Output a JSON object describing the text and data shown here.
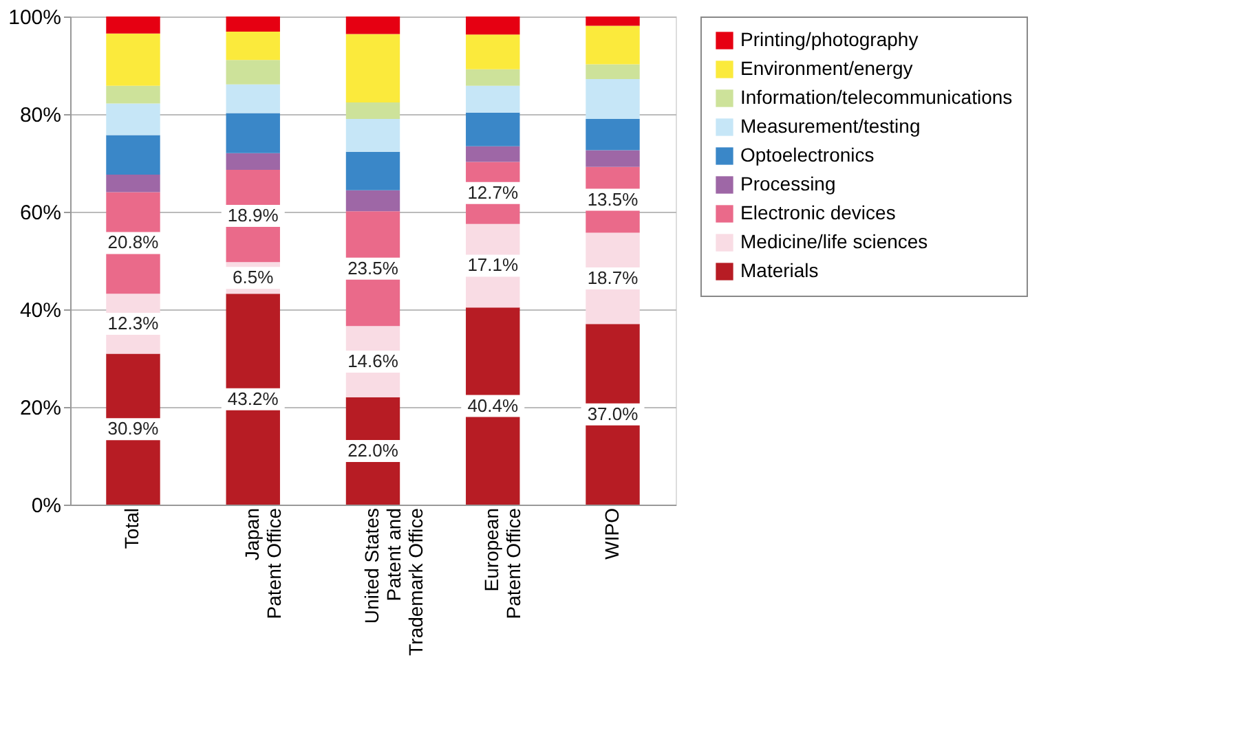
{
  "chart_data": {
    "type": "bar",
    "stacked": true,
    "categories": [
      "Total",
      "Japan\nPatent Office",
      "United States\nPatent and\nTrademark Office",
      "European\nPatent Office",
      "WIPO"
    ],
    "series": [
      {
        "name": "Materials",
        "color": "#b71c24",
        "values": [
          30.9,
          43.2,
          22.0,
          40.4,
          37.0
        ],
        "value_labels": [
          "30.9%",
          "43.2%",
          "22.0%",
          "40.4%",
          "37.0%"
        ]
      },
      {
        "name": "Medicine/life sciences",
        "color": "#f9dce4",
        "values": [
          12.3,
          6.5,
          14.6,
          17.1,
          18.7
        ],
        "value_labels": [
          "12.3%",
          "6.5%",
          "14.6%",
          "17.1%",
          "18.7%"
        ]
      },
      {
        "name": "Electronic devices",
        "color": "#ea6a8a",
        "values": [
          20.8,
          18.9,
          23.5,
          12.7,
          13.5
        ],
        "value_labels": [
          "20.8%",
          "18.9%",
          "23.5%",
          "12.7%",
          "13.5%"
        ]
      },
      {
        "name": "Processing",
        "color": "#9e67a6",
        "values": [
          3.6,
          3.4,
          4.3,
          3.2,
          3.4
        ]
      },
      {
        "name": "Optoelectronics",
        "color": "#3a87c8",
        "values": [
          8.1,
          8.2,
          7.9,
          6.9,
          6.4
        ]
      },
      {
        "name": "Measurement/testing",
        "color": "#c6e6f7",
        "values": [
          6.5,
          5.9,
          6.7,
          5.5,
          8.2
        ]
      },
      {
        "name": "Information/telecommunications",
        "color": "#cde29a",
        "values": [
          3.6,
          5.0,
          3.4,
          3.4,
          3.0
        ]
      },
      {
        "name": "Environment/energy",
        "color": "#fbea3c",
        "values": [
          10.7,
          5.8,
          14.0,
          7.1,
          7.9
        ]
      },
      {
        "name": "Printing/photography",
        "color": "#e60012",
        "values": [
          3.5,
          3.1,
          3.6,
          3.7,
          1.9
        ]
      }
    ],
    "ylim": [
      0,
      100
    ],
    "yticks": [
      {
        "value": 0,
        "label": "0%"
      },
      {
        "value": 20,
        "label": "20%"
      },
      {
        "value": 40,
        "label": "40%"
      },
      {
        "value": 60,
        "label": "60%"
      },
      {
        "value": 80,
        "label": "80%"
      },
      {
        "value": 100,
        "label": "100%"
      }
    ],
    "grid": "y",
    "legend": "right"
  }
}
